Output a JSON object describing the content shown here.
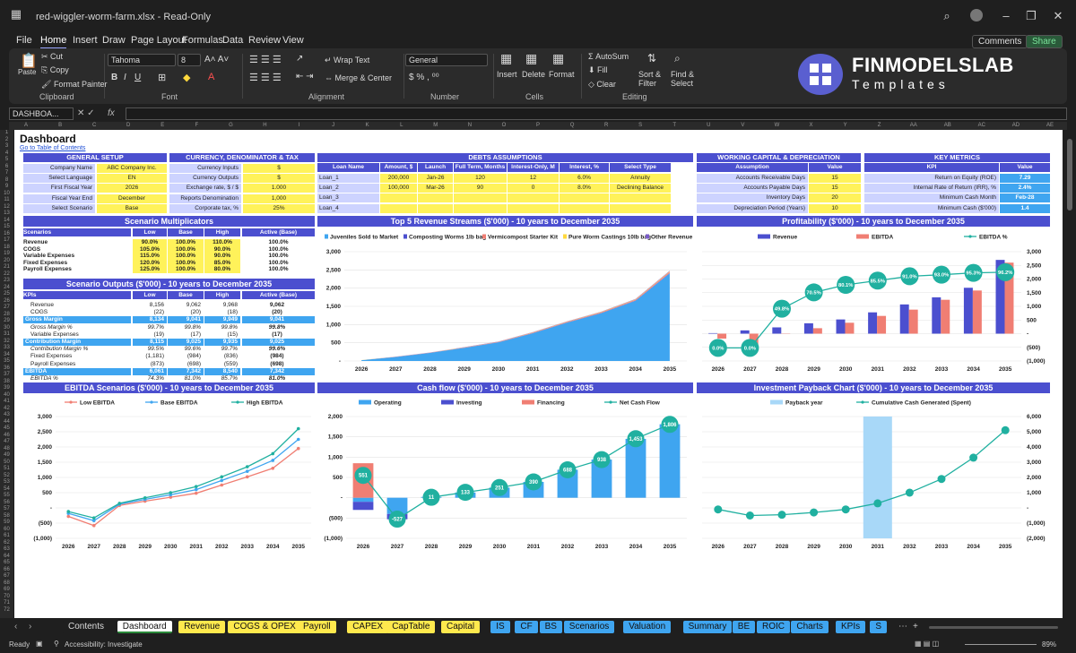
{
  "titlebar": {
    "title": "red-wiggler-worm-farm.xlsx  -  Read-Only"
  },
  "menu": [
    "File",
    "Home",
    "Insert",
    "Draw",
    "Page Layout",
    "Formulas",
    "Data",
    "Review",
    "View"
  ],
  "menu_buttons": {
    "comments": "Comments",
    "share": "Share"
  },
  "ribbon": {
    "clipboard": {
      "paste": "Paste",
      "cut": "Cut",
      "copy": "Copy",
      "format_painter": "Format Painter",
      "label": "Clipboard"
    },
    "font": {
      "name": "Tahoma",
      "size": "8",
      "label": "Font"
    },
    "alignment": {
      "wrap": "Wrap Text",
      "merge": "Merge & Center",
      "label": "Alignment"
    },
    "number": {
      "format": "General",
      "label": "Number"
    },
    "cells": {
      "insert": "Insert",
      "delete": "Delete",
      "format": "Format",
      "label": "Cells"
    },
    "editing": {
      "autosum": "AutoSum",
      "fill": "Fill",
      "clear": "Clear",
      "sort": "Sort & Filter",
      "find": "Find & Select",
      "label": "Editing"
    }
  },
  "logo": {
    "title": "FINMODELSLAB",
    "subtitle": "Templates"
  },
  "formula_bar": {
    "name_box": "DASHBOA...",
    "fx": "fx"
  },
  "columns": [
    "A",
    "B",
    "C",
    "D",
    "E",
    "F",
    "G",
    "H",
    "I",
    "J",
    "K",
    "L",
    "M",
    "N",
    "O",
    "P",
    "Q",
    "R",
    "S",
    "T",
    "U",
    "V",
    "W",
    "X",
    "Y",
    "Z",
    "AA",
    "AB",
    "AC",
    "AD",
    "AE"
  ],
  "sheet": {
    "title": "Dashboard",
    "link": "Go to Table of Contents",
    "general_setup": {
      "header": "GENERAL SETUP",
      "rows": [
        [
          "Company Name",
          "ABC Company Inc."
        ],
        [
          "Select Language",
          "EN"
        ],
        [
          "First Fiscal Year",
          "2026"
        ],
        [
          "Fiscal Year End",
          "December"
        ],
        [
          "Select Scenario",
          "Base"
        ]
      ]
    },
    "currency": {
      "header": "CURRENCY, DENOMINATOR & TAX",
      "rows": [
        [
          "Currency Inputs",
          "$"
        ],
        [
          "Currency Outputs",
          "$"
        ],
        [
          "Exchange rate, $ / $",
          "1.000"
        ],
        [
          "Reports Denomination",
          "1,000"
        ],
        [
          "Corporate tax, %",
          "25%"
        ]
      ]
    },
    "debts": {
      "header": "DEBTS ASSUMPTIONS",
      "cols": [
        "Loan Name",
        "Amount, $",
        "Launch",
        "Full Term, Months",
        "Interest-Only, M",
        "Interest, %",
        "Select Type"
      ],
      "rows": [
        [
          "Loan_1",
          "200,000",
          "Jan-26",
          "120",
          "12",
          "6.0%",
          "Annuity"
        ],
        [
          "Loan_2",
          "100,000",
          "Mar-26",
          "90",
          "0",
          "8.0%",
          "Declining Balance"
        ],
        [
          "Loan_3",
          "",
          "",
          "",
          "",
          "",
          ""
        ],
        [
          "Loan_4",
          "",
          "",
          "",
          "",
          "",
          ""
        ]
      ]
    },
    "wc": {
      "header": "WORKING CAPITAL & DEPRECIATION",
      "cols": [
        "Assumption",
        "Value"
      ],
      "rows": [
        [
          "Accounts Receivable Days",
          "15"
        ],
        [
          "Accounts Payable Days",
          "15"
        ],
        [
          "Inventory Days",
          "20"
        ],
        [
          "Depreciation Period (Years)",
          "10"
        ]
      ]
    },
    "metrics": {
      "header": "KEY METRICS",
      "cols": [
        "KPI",
        "Value"
      ],
      "rows": [
        [
          "Return on Equity (ROE)",
          "7.29"
        ],
        [
          "Internal Rate of Return (IRR), %",
          "2.4%"
        ],
        [
          "Minimum Cash Month",
          "Feb-28"
        ],
        [
          "Minimum Cash ($'000)",
          "1.4"
        ]
      ]
    },
    "multipliers": {
      "header": "Scenario Multiplicators",
      "cols": [
        "Scenarios",
        "Low",
        "Base",
        "High",
        "Active (Base)"
      ],
      "rows": [
        [
          "Revenue",
          "90.0%",
          "100.0%",
          "110.0%",
          "100.0%"
        ],
        [
          "COGS",
          "105.0%",
          "100.0%",
          "90.0%",
          "100.0%"
        ],
        [
          "Variable Expenses",
          "115.0%",
          "100.0%",
          "90.0%",
          "100.0%"
        ],
        [
          "Fixed Expenses",
          "120.0%",
          "100.0%",
          "85.0%",
          "100.0%"
        ],
        [
          "Payroll Expenses",
          "125.0%",
          "100.0%",
          "80.0%",
          "100.0%"
        ]
      ]
    },
    "outputs": {
      "header": "Scenario Outputs ($'000) - 10 years to December 2035",
      "cols": [
        "KPIs",
        "Low",
        "Base",
        "High",
        "Active (Base)"
      ],
      "rows": [
        [
          "Revenue",
          "8,156",
          "9,062",
          "9,968",
          "9,062"
        ],
        [
          "COGS",
          "(22)",
          "(20)",
          "(18)",
          "(20)"
        ],
        [
          "Gross Margin",
          "8,134",
          "9,041",
          "9,949",
          "9,041"
        ],
        [
          "Gross Margin %",
          "99.7%",
          "99.8%",
          "99.8%",
          "99.8%"
        ],
        [
          "Variable Expenses",
          "(19)",
          "(17)",
          "(15)",
          "(17)"
        ],
        [
          "Contribution Margin",
          "8,115",
          "9,025",
          "9,935",
          "9,025"
        ],
        [
          "Contribution Margin %",
          "99.5%",
          "99.6%",
          "99.7%",
          "99.6%"
        ],
        [
          "Fixed Expenses",
          "(1,181)",
          "(984)",
          "(836)",
          "(984)"
        ],
        [
          "Payroll Expenses",
          "(873)",
          "(698)",
          "(559)",
          "(698)"
        ],
        [
          "EBITDA",
          "6,061",
          "7,342",
          "8,540",
          "7,342"
        ],
        [
          "EBITDA %",
          "74.3%",
          "81.0%",
          "85.7%",
          "81.0%"
        ]
      ]
    }
  },
  "chart_data": [
    {
      "type": "area",
      "title": "Top 5 Revenue Streams ($'000) - 10 years to December 2035",
      "categories": [
        "2026",
        "2027",
        "2028",
        "2029",
        "2030",
        "2031",
        "2032",
        "2033",
        "2034",
        "2035"
      ],
      "ylim": [
        0,
        3000
      ],
      "yticks": [
        "3,000",
        "2,500",
        "2,000",
        "1,500",
        "1,000",
        "500",
        "-"
      ],
      "series": [
        {
          "name": "Juveniles Sold to Market",
          "values": [
            20,
            110,
            220,
            360,
            510,
            760,
            1050,
            1310,
            1650,
            2400
          ]
        },
        {
          "name": "Composting Worms 1lb bag",
          "values": [
            1,
            2,
            3,
            4,
            5,
            6,
            7,
            8,
            9,
            12
          ]
        },
        {
          "name": "Vermicompost Starter Kit",
          "values": [
            2,
            4,
            6,
            8,
            10,
            14,
            18,
            22,
            26,
            40
          ]
        },
        {
          "name": "Pure Worm Castings 10lb bag",
          "values": [
            1,
            2,
            3,
            4,
            5,
            6,
            7,
            8,
            9,
            12
          ]
        },
        {
          "name": "Other Revenue",
          "values": [
            1,
            2,
            3,
            4,
            5,
            6,
            7,
            8,
            9,
            12
          ]
        }
      ]
    },
    {
      "type": "bar",
      "title": "Profitability ($'000) - 10 years to December 2035",
      "categories": [
        "2026",
        "2027",
        "2028",
        "2029",
        "2030",
        "2031",
        "2032",
        "2033",
        "2034",
        "2035"
      ],
      "ylim": [
        -1000,
        3000
      ],
      "yticks": [
        "3,000",
        "2,500",
        "2,000",
        "1,500",
        "1,000",
        "500",
        "-",
        "(500)",
        "(1,000)"
      ],
      "series": [
        {
          "name": "Revenue",
          "values": [
            20,
            120,
            230,
            380,
            520,
            780,
            1070,
            1330,
            1680,
            2700
          ]
        },
        {
          "name": "EBITDA",
          "values": [
            -180,
            -400,
            -10,
            200,
            400,
            650,
            880,
            1240,
            1580,
            2600
          ]
        },
        {
          "name": "EBITDA %",
          "values": [
            0.0,
            0.0,
            49.8,
            70.5,
            80.1,
            85.5,
            91.0,
            93.0,
            95.3,
            96.2
          ],
          "labels": [
            "0.0%",
            "0.0%",
            "49.8%",
            "70.5%",
            "80.1%",
            "85.5%",
            "91.0%",
            "93.0%",
            "95.3%",
            "96.2%"
          ]
        }
      ]
    },
    {
      "type": "line",
      "title": "EBITDA Scenarios ($'000) - 10 years to December 2035",
      "categories": [
        "2026",
        "2027",
        "2028",
        "2029",
        "2030",
        "2031",
        "2032",
        "2033",
        "2034",
        "2035"
      ],
      "ylim": [
        -1000,
        3000
      ],
      "yticks": [
        "3,000",
        "2,500",
        "2,000",
        "1,500",
        "1,000",
        "500",
        "-",
        "(500)",
        "(1,000)"
      ],
      "series": [
        {
          "name": "Low EBITDA",
          "values": [
            -280,
            -580,
            80,
            220,
            350,
            480,
            750,
            1020,
            1300,
            1950
          ]
        },
        {
          "name": "Base EBITDA",
          "values": [
            -180,
            -420,
            120,
            280,
            430,
            600,
            900,
            1200,
            1560,
            2250
          ]
        },
        {
          "name": "High EBITDA",
          "values": [
            -120,
            -330,
            150,
            330,
            500,
            700,
            1020,
            1350,
            1780,
            2600
          ]
        }
      ]
    },
    {
      "type": "bar",
      "title": "Cash flow ($'000) - 10 years to December 2035",
      "categories": [
        "2026",
        "2027",
        "2028",
        "2029",
        "2030",
        "2031",
        "2032",
        "2033",
        "2034",
        "2035"
      ],
      "ylim": [
        -1000,
        2000
      ],
      "yticks": [
        "2,000",
        "1,500",
        "1,000",
        "500",
        "-",
        "(500)",
        "(1,000)"
      ],
      "series": [
        {
          "name": "Operating",
          "values": [
            -100,
            -400,
            20,
            130,
            250,
            390,
            690,
            940,
            1450,
            1810
          ]
        },
        {
          "name": "Investing",
          "values": [
            -200,
            -130,
            0,
            0,
            0,
            0,
            0,
            0,
            0,
            0
          ]
        },
        {
          "name": "Financing",
          "values": [
            850,
            0,
            0,
            0,
            0,
            0,
            0,
            0,
            0,
            0
          ]
        },
        {
          "name": "Net Cash Flow",
          "values": [
            551,
            -527,
            11,
            133,
            251,
            390,
            688,
            938,
            1453,
            1806
          ],
          "labels": [
            "551",
            "-527",
            "11",
            "133",
            "251",
            "390",
            "688",
            "938",
            "1,453",
            "1,806"
          ]
        }
      ]
    },
    {
      "type": "line",
      "title": "Investment Payback Chart ($'000) - 10 years to December 2035",
      "categories": [
        "2026",
        "2027",
        "2028",
        "2029",
        "2030",
        "2031",
        "2032",
        "2033",
        "2034",
        "2035"
      ],
      "ylim": [
        -2000,
        6000
      ],
      "yticks": [
        "6,000",
        "5,000",
        "4,000",
        "3,000",
        "2,000",
        "1,000",
        "-",
        "(1,000)",
        "(2,000)"
      ],
      "series": [
        {
          "name": "Payback year",
          "values": [
            0,
            0,
            0,
            0,
            0,
            1,
            0,
            0,
            0,
            0
          ]
        },
        {
          "name": "Cumulative Cash Generated (Spent)",
          "values": [
            -100,
            -500,
            -450,
            -300,
            -100,
            300,
            1000,
            1900,
            3300,
            5100
          ]
        }
      ]
    }
  ],
  "tabs": [
    {
      "label": "Contents",
      "color": "#1f1f1f",
      "fg": "#ddd"
    },
    {
      "label": "Dashboard",
      "color": "#ffffff",
      "fg": "#111"
    },
    {
      "label": "Revenue",
      "color": "#ffe94d",
      "fg": "#111"
    },
    {
      "label": "COGS & OPEX",
      "color": "#ffe94d",
      "fg": "#111"
    },
    {
      "label": "Payroll",
      "color": "#ffe94d",
      "fg": "#111"
    },
    {
      "label": "CAPEX",
      "color": "#ffe94d",
      "fg": "#111"
    },
    {
      "label": "CapTable",
      "color": "#ffe94d",
      "fg": "#111"
    },
    {
      "label": "Capital",
      "color": "#ffe94d",
      "fg": "#111"
    },
    {
      "label": "IS",
      "color": "#3fa5f0",
      "fg": "#111"
    },
    {
      "label": "CF",
      "color": "#3fa5f0",
      "fg": "#111"
    },
    {
      "label": "BS",
      "color": "#3fa5f0",
      "fg": "#111"
    },
    {
      "label": "Scenarios",
      "color": "#3fa5f0",
      "fg": "#111"
    },
    {
      "label": "Valuation",
      "color": "#3fa5f0",
      "fg": "#111"
    },
    {
      "label": "Summary",
      "color": "#3fa5f0",
      "fg": "#111"
    },
    {
      "label": "BE",
      "color": "#3fa5f0",
      "fg": "#111"
    },
    {
      "label": "ROIC",
      "color": "#3fa5f0",
      "fg": "#111"
    },
    {
      "label": "Charts",
      "color": "#3fa5f0",
      "fg": "#111"
    },
    {
      "label": "KPIs",
      "color": "#3fa5f0",
      "fg": "#111"
    },
    {
      "label": "S",
      "color": "#3fa5f0",
      "fg": "#111"
    }
  ],
  "status": {
    "ready": "Ready",
    "accessibility": "Accessibility: Investigate",
    "zoom": "89%"
  }
}
